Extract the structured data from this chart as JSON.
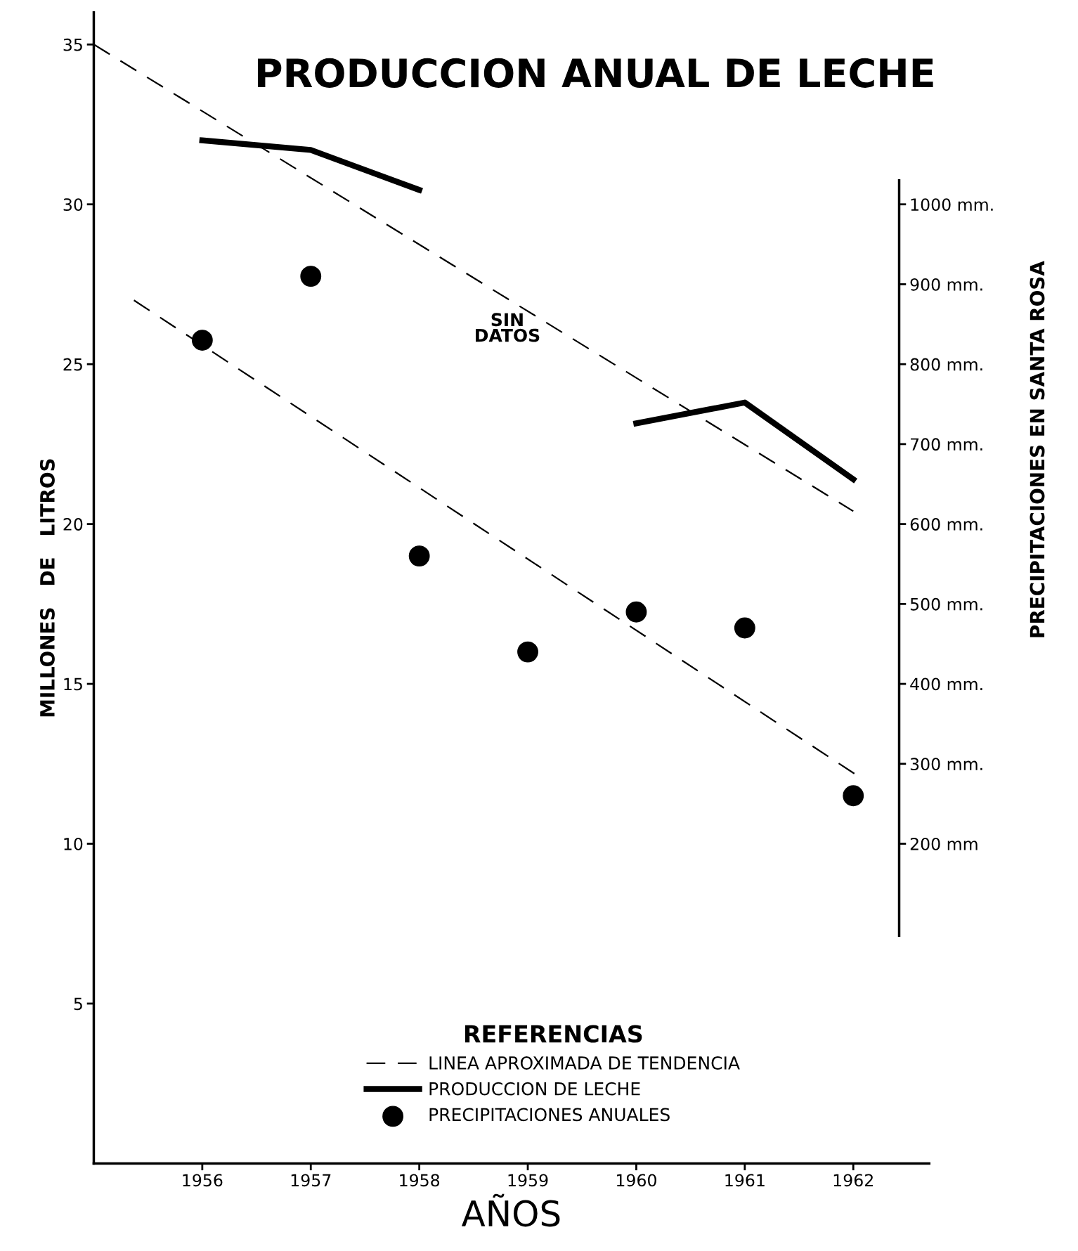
{
  "chart_data": {
    "type": "line",
    "title": "PRODUCCION ANUAL DE LECHE",
    "xlabel": "AÑOS",
    "ylabel": "MILLONES   DE   LITROS",
    "y2label": "PRECIPITACIONES EN SANTA ROSA",
    "legend_title": "REFERENCIAS",
    "x": [
      1956,
      1957,
      1958,
      1959,
      1960,
      1961,
      1962
    ],
    "series": [
      {
        "name": "LINEA APROXIMADA DE TENDENCIA",
        "line_style": "dashed",
        "color": "#000000",
        "x": [
          1955,
          1962
        ],
        "values": [
          35.0,
          20.4
        ]
      },
      {
        "line_style": "dashed",
        "color": "#000000",
        "axis": "y2",
        "x": [
          1955.37,
          1962.04
        ],
        "values": [
          880,
          285
        ]
      },
      {
        "name": "PRODUCCION DE LECHE",
        "line_style": "solid",
        "color": "#000000",
        "values": [
          32.0,
          31.7,
          30.45,
          null,
          23.15,
          23.8,
          21.4
        ]
      },
      {
        "name": "PRECIPITACIONES ANUALES",
        "type": "scatter",
        "marker": "circle",
        "color": "#000000",
        "axis": "y2",
        "values": [
          830,
          910,
          560,
          440,
          490,
          470,
          260
        ]
      }
    ],
    "annotations": [
      "SIN\nDATOS"
    ],
    "xlim": [
      1955,
      1962.7
    ],
    "xticks": [
      1956,
      1957,
      1958,
      1959,
      1960,
      1961,
      1962
    ],
    "ylim": [
      0,
      36
    ],
    "yticks": [
      5,
      10,
      15,
      20,
      25,
      30,
      35
    ],
    "y2lim": [
      -200,
      1240
    ],
    "y2ticks": [
      {
        "value": 1000,
        "label": "1000 mm."
      },
      {
        "value": 900,
        "label": "900 mm."
      },
      {
        "value": 800,
        "label": "800 mm."
      },
      {
        "value": 700,
        "label": "700 mm."
      },
      {
        "value": 600,
        "label": "600 mm."
      },
      {
        "value": 500,
        "label": "500 mm."
      },
      {
        "value": 400,
        "label": "400 mm."
      },
      {
        "value": 300,
        "label": "300 mm."
      },
      {
        "value": 200,
        "label": "200 mm"
      }
    ],
    "legend": "bottom",
    "grid": false
  }
}
